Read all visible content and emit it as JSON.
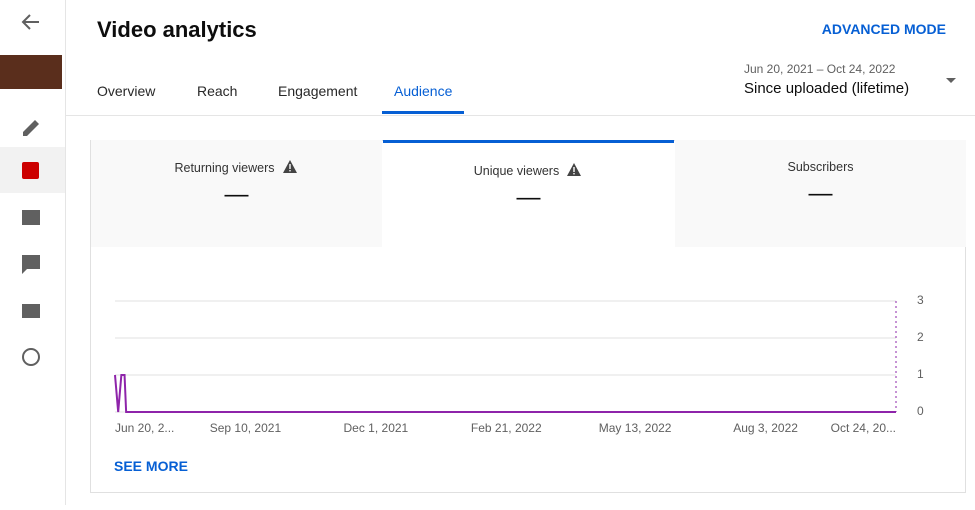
{
  "header": {
    "title": "Video analytics",
    "advanced_mode": "ADVANCED MODE"
  },
  "tabs": [
    "Overview",
    "Reach",
    "Engagement",
    "Audience"
  ],
  "active_tab": 3,
  "date_range": {
    "dates": "Jun 20, 2021 – Oct 24, 2022",
    "label": "Since uploaded (lifetime)"
  },
  "metrics": [
    {
      "name": "Returning viewers",
      "value": "—",
      "warning": true
    },
    {
      "name": "Unique viewers",
      "value": "—",
      "warning": true
    },
    {
      "name": "Subscribers",
      "value": "—",
      "warning": false
    }
  ],
  "active_metric": 1,
  "chart_data": {
    "type": "line",
    "x": [
      "2021-06-20",
      "2021-06-22",
      "2021-06-24",
      "2021-06-26",
      "2021-06-27",
      "2022-10-24"
    ],
    "values": [
      1,
      0,
      1,
      1,
      0,
      0
    ],
    "color": "#8e24aa",
    "xlim": [
      "2021-06-20",
      "2022-10-24"
    ],
    "xticks": [
      {
        "value": "2021-06-20",
        "label": "Jun 20, 2..."
      },
      {
        "value": "2021-09-10",
        "label": "Sep 10, 2021"
      },
      {
        "value": "2021-12-01",
        "label": "Dec 1, 2021"
      },
      {
        "value": "2022-02-21",
        "label": "Feb 21, 2022"
      },
      {
        "value": "2022-05-13",
        "label": "May 13, 2022"
      },
      {
        "value": "2022-08-03",
        "label": "Aug 3, 2022"
      },
      {
        "value": "2022-10-24",
        "label": "Oct 24, 20..."
      }
    ],
    "ylim": [
      0,
      3
    ],
    "yticks": [
      0,
      1,
      2,
      3
    ],
    "grid": true
  },
  "see_more": "SEE MORE"
}
